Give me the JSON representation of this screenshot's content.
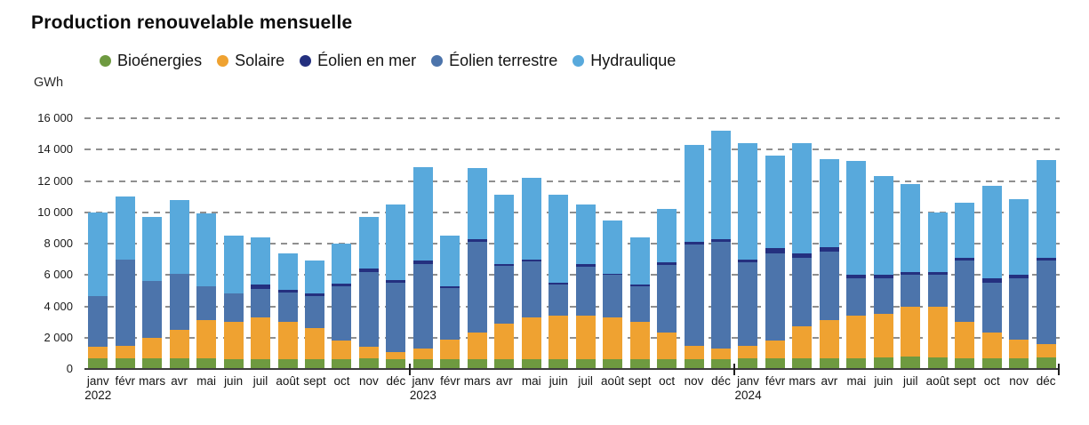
{
  "title": "Production renouvelable mensuelle",
  "chart_data": {
    "type": "bar",
    "stacked": true,
    "title": "Production renouvelable mensuelle",
    "ylabel": "GWh",
    "ylim": [
      0,
      16000
    ],
    "yticks": [
      0,
      2000,
      4000,
      6000,
      8000,
      10000,
      12000,
      14000,
      16000
    ],
    "ytick_labels": [
      "0",
      "2 000",
      "4 000",
      "6 000",
      "8 000",
      "10 000",
      "12 000",
      "14 000",
      "16 000"
    ],
    "grid": "horizontal-dashed",
    "legend_position": "top",
    "month_labels": [
      "janv",
      "févr",
      "mars",
      "avr",
      "mai",
      "juin",
      "juil",
      "août",
      "sept",
      "oct",
      "nov",
      "déc"
    ],
    "years": [
      {
        "label": "2022",
        "start_index": 0
      },
      {
        "label": "2023",
        "start_index": 12
      },
      {
        "label": "2024",
        "start_index": 24
      }
    ],
    "n_months": 36,
    "stack_order": [
      "bioenergies",
      "solaire",
      "eolien_terrestre",
      "eolien_en_mer",
      "hydraulique"
    ],
    "series": [
      {
        "id": "bioenergies",
        "name": "Bioénergies",
        "color": "#6e9a40",
        "values": [
          700,
          700,
          700,
          700,
          700,
          600,
          600,
          650,
          650,
          600,
          700,
          650,
          650,
          650,
          650,
          650,
          650,
          600,
          650,
          650,
          650,
          650,
          650,
          650,
          700,
          700,
          700,
          700,
          700,
          750,
          800,
          750,
          700,
          700,
          700,
          750
        ]
      },
      {
        "id": "solaire",
        "name": "Solaire",
        "color": "#efa231",
        "values": [
          700,
          800,
          1300,
          1800,
          2400,
          2400,
          2700,
          2350,
          1950,
          1200,
          700,
          450,
          650,
          1250,
          1650,
          2250,
          2650,
          2800,
          2750,
          2650,
          2350,
          1650,
          850,
          650,
          800,
          1100,
          2000,
          2400,
          2700,
          2750,
          3200,
          3250,
          2300,
          1600,
          1200,
          850
        ]
      },
      {
        "id": "eolien_en_mer",
        "name": "Éolien en mer",
        "color": "#24307f",
        "values": [
          0,
          0,
          0,
          0,
          0,
          0,
          300,
          150,
          150,
          150,
          200,
          200,
          200,
          100,
          200,
          100,
          150,
          100,
          150,
          100,
          150,
          150,
          150,
          200,
          200,
          300,
          300,
          300,
          200,
          200,
          200,
          200,
          200,
          300,
          200,
          200
        ]
      },
      {
        "id": "eolien_terrestre",
        "name": "Éolien terrestre",
        "color": "#4c74ab",
        "values": [
          3250,
          5500,
          3600,
          3550,
          2150,
          1850,
          1800,
          1900,
          2050,
          3500,
          4800,
          4400,
          5400,
          3250,
          5800,
          3700,
          3550,
          2000,
          3150,
          2700,
          2250,
          4350,
          6450,
          6800,
          5300,
          5600,
          4400,
          4400,
          2400,
          2300,
          2000,
          2000,
          3900,
          3200,
          3900,
          5300
        ]
      },
      {
        "id": "hydraulique",
        "name": "Hydraulique",
        "color": "#58a9dc",
        "values": [
          5350,
          4000,
          4100,
          4750,
          4700,
          3650,
          3000,
          2350,
          2100,
          2550,
          3300,
          4800,
          6000,
          3250,
          4500,
          4400,
          5200,
          5600,
          3800,
          3400,
          3000,
          3400,
          6200,
          6900,
          7400,
          5900,
          7000,
          5600,
          7300,
          6300,
          5600,
          3800,
          3500,
          5900,
          4850,
          6250
        ]
      }
    ]
  }
}
